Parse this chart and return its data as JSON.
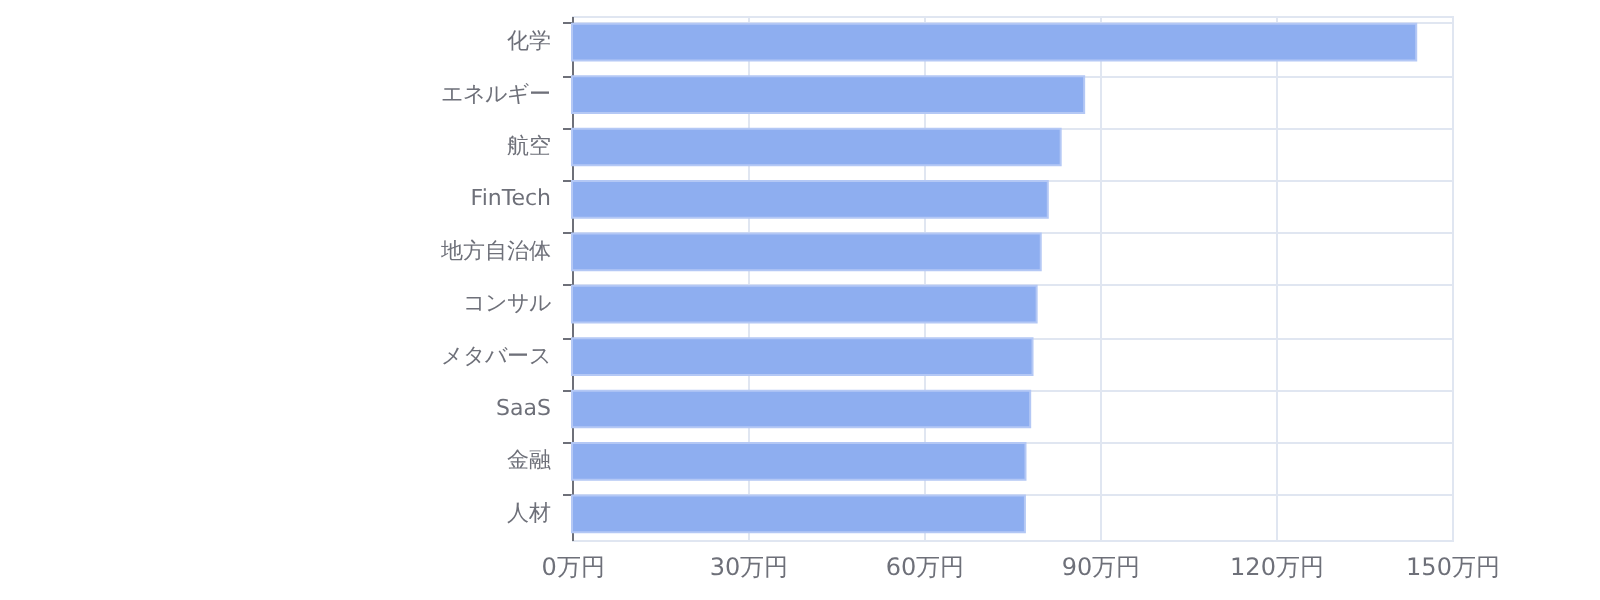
{
  "chart_data": {
    "type": "bar",
    "orientation": "horizontal",
    "categories": [
      "化学",
      "エネルギー",
      "航空",
      "FinTech",
      "地方自治体",
      "コンサル",
      "メタバース",
      "SaaS",
      "金融",
      "人材"
    ],
    "values": [
      143.9,
      87.3,
      83.3,
      81.1,
      79.9,
      79.2,
      78.5,
      78.1,
      77.3,
      77.2
    ],
    "color": "#8eaef0",
    "xlim": [
      0,
      150
    ],
    "xticks": [
      {
        "value": 0,
        "label": "0万円"
      },
      {
        "value": 30,
        "label": "30万円"
      },
      {
        "value": 60,
        "label": "60万円"
      },
      {
        "value": 90,
        "label": "90万円"
      },
      {
        "value": 120,
        "label": "120万円"
      },
      {
        "value": 150,
        "label": "150万円"
      }
    ],
    "grid": true
  }
}
